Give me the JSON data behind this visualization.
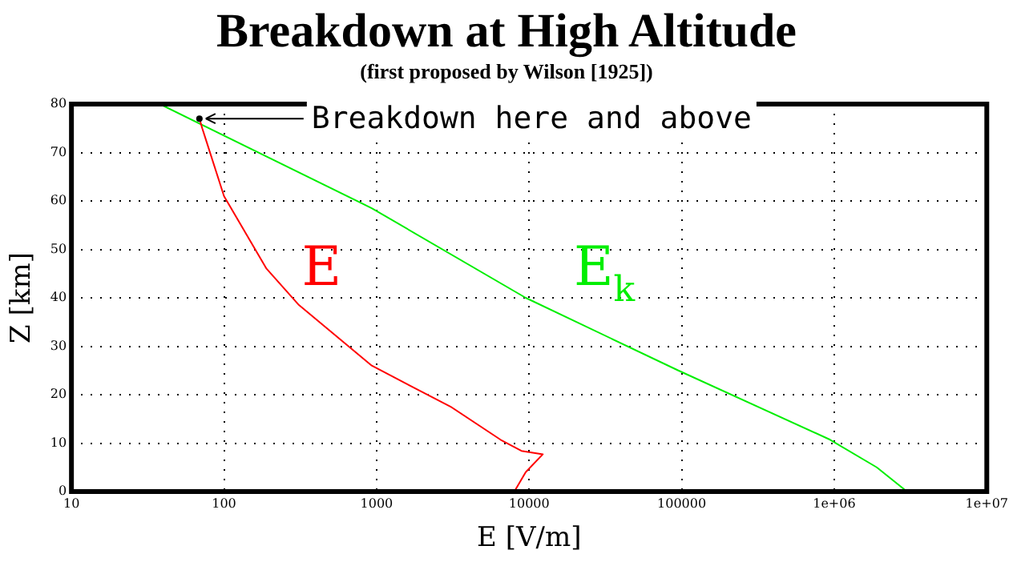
{
  "chart_data": {
    "type": "line",
    "title": "Breakdown at High Altitude",
    "subtitle": "(first proposed by Wilson [1925])",
    "xlabel": "E [V/m]",
    "ylabel": "Z [km]",
    "log": "x",
    "xlim": [
      10,
      10000000
    ],
    "xticks": [
      10,
      100,
      1000,
      10000,
      100000,
      {
        "value": 1000000,
        "label": "1e+06"
      },
      {
        "value": 10000000,
        "label": "1e+07"
      }
    ],
    "ylim": [
      0,
      80
    ],
    "yticks": [
      0,
      10,
      20,
      30,
      40,
      50,
      60,
      70,
      80
    ],
    "grid": true,
    "line_style": "solid",
    "marker": "none",
    "series": [
      {
        "name": "E",
        "color": "#ff0000",
        "x": [
          69,
          72,
          100,
          190,
          310,
          930,
          3100,
          6500,
          8900,
          12300,
          9500,
          8000
        ],
        "values": [
          77,
          75,
          61,
          46,
          38.5,
          26,
          17.4,
          10.7,
          8.4,
          7.7,
          4,
          0
        ]
      },
      {
        "name": "E$_{k}$",
        "color": "#00ee00",
        "x": [
          38,
          930,
          9500,
          95000,
          940000,
          1900000,
          3000000
        ],
        "values": [
          80,
          58.5,
          40,
          25,
          10.7,
          5,
          0
        ]
      }
    ],
    "annotations": [
      {
        "text": "Breakdown here and above",
        "x": 69,
        "y": 77
      }
    ]
  }
}
